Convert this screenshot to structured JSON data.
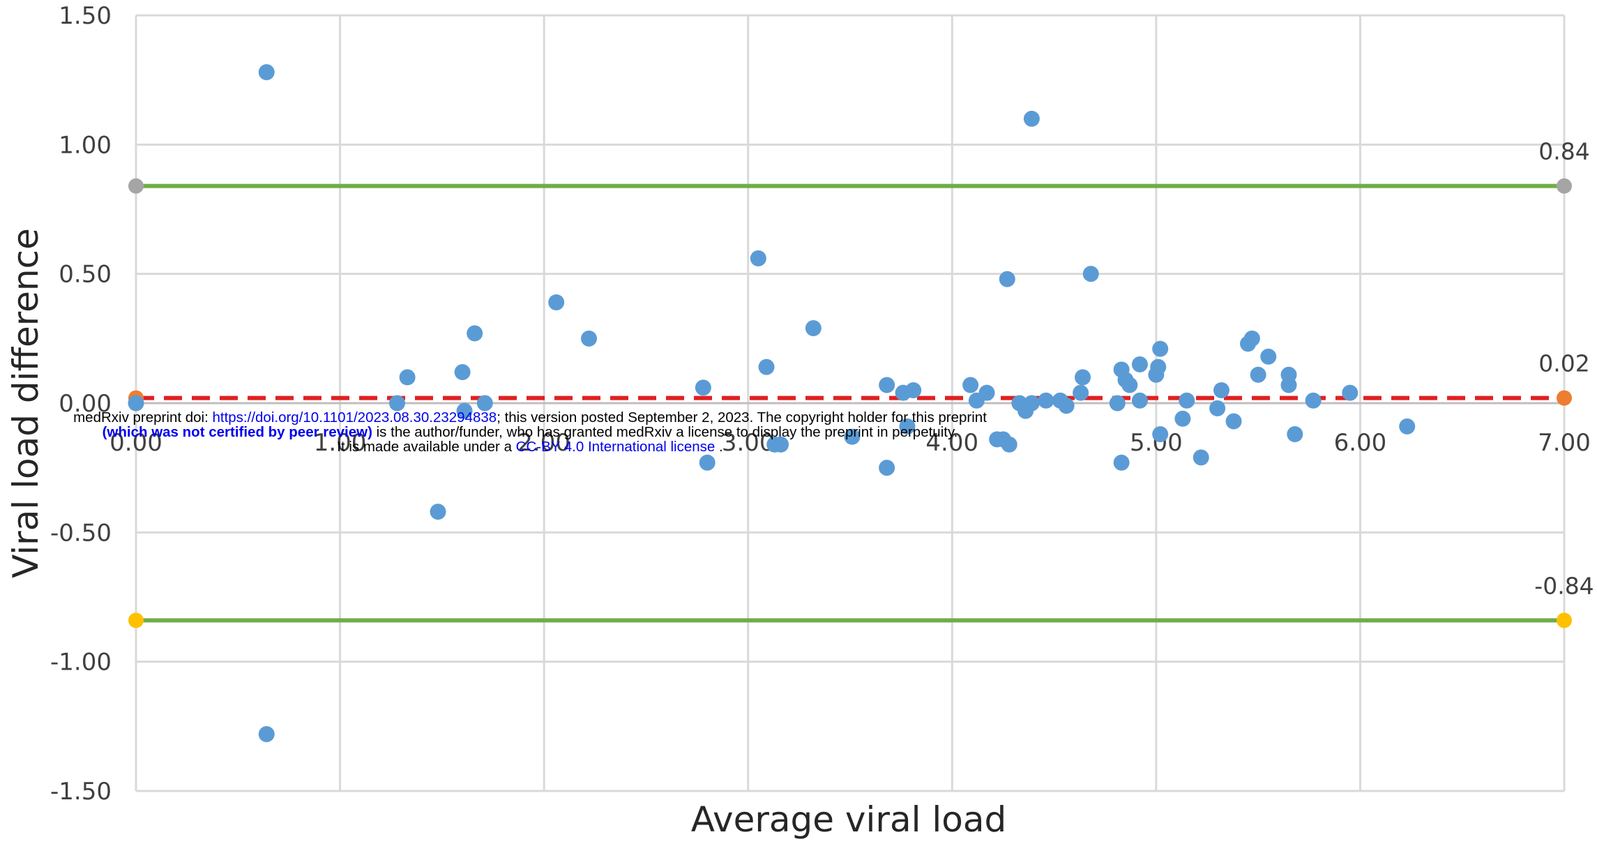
{
  "chart_data": {
    "type": "scatter",
    "xlabel": "Average viral load",
    "ylabel": "Viral load difference",
    "xlim": [
      0,
      7
    ],
    "ylim": [
      -1.5,
      1.5
    ],
    "x_ticks": [
      "0.00",
      "1.00",
      "2.00",
      "3.00",
      "4.00",
      "5.00",
      "6.00",
      "7.00"
    ],
    "y_ticks": [
      "1.50",
      "1.00",
      "0.50",
      "0.00",
      "-0.50",
      "-1.00",
      "-1.50"
    ],
    "grid": true,
    "point_color": "#5b9bd5",
    "points": [
      {
        "x": 0.0,
        "y": 0.0
      },
      {
        "x": 0.64,
        "y": 1.28
      },
      {
        "x": 0.64,
        "y": -1.28
      },
      {
        "x": 1.28,
        "y": 0.0
      },
      {
        "x": 1.33,
        "y": 0.1
      },
      {
        "x": 1.48,
        "y": -0.42
      },
      {
        "x": 1.6,
        "y": 0.12
      },
      {
        "x": 1.61,
        "y": -0.03
      },
      {
        "x": 1.66,
        "y": 0.27
      },
      {
        "x": 1.71,
        "y": 0.0
      },
      {
        "x": 2.06,
        "y": 0.39
      },
      {
        "x": 2.22,
        "y": 0.25
      },
      {
        "x": 2.78,
        "y": 0.06
      },
      {
        "x": 2.8,
        "y": -0.23
      },
      {
        "x": 3.05,
        "y": 0.56
      },
      {
        "x": 3.09,
        "y": 0.14
      },
      {
        "x": 3.13,
        "y": -0.16
      },
      {
        "x": 3.16,
        "y": -0.16
      },
      {
        "x": 3.32,
        "y": 0.29
      },
      {
        "x": 3.51,
        "y": -0.13
      },
      {
        "x": 3.68,
        "y": 0.07
      },
      {
        "x": 3.68,
        "y": -0.25
      },
      {
        "x": 3.76,
        "y": 0.04
      },
      {
        "x": 3.78,
        "y": -0.09
      },
      {
        "x": 3.81,
        "y": 0.05
      },
      {
        "x": 4.09,
        "y": 0.07
      },
      {
        "x": 4.12,
        "y": 0.01
      },
      {
        "x": 4.17,
        "y": 0.04
      },
      {
        "x": 4.22,
        "y": -0.14
      },
      {
        "x": 4.25,
        "y": -0.14
      },
      {
        "x": 4.27,
        "y": 0.48
      },
      {
        "x": 4.28,
        "y": -0.16
      },
      {
        "x": 4.33,
        "y": 0.0
      },
      {
        "x": 4.36,
        "y": -0.03
      },
      {
        "x": 4.39,
        "y": 1.1
      },
      {
        "x": 4.39,
        "y": 0.0
      },
      {
        "x": 4.46,
        "y": 0.01
      },
      {
        "x": 4.53,
        "y": 0.01
      },
      {
        "x": 4.56,
        "y": -0.01
      },
      {
        "x": 4.63,
        "y": 0.04
      },
      {
        "x": 4.64,
        "y": 0.1
      },
      {
        "x": 4.68,
        "y": 0.5
      },
      {
        "x": 4.81,
        "y": 0.0
      },
      {
        "x": 4.83,
        "y": 0.13
      },
      {
        "x": 4.83,
        "y": -0.23
      },
      {
        "x": 4.85,
        "y": 0.09
      },
      {
        "x": 4.87,
        "y": 0.07
      },
      {
        "x": 4.92,
        "y": 0.15
      },
      {
        "x": 4.92,
        "y": 0.01
      },
      {
        "x": 5.0,
        "y": 0.11
      },
      {
        "x": 5.01,
        "y": 0.14
      },
      {
        "x": 5.02,
        "y": 0.21
      },
      {
        "x": 5.02,
        "y": -0.12
      },
      {
        "x": 5.13,
        "y": -0.06
      },
      {
        "x": 5.15,
        "y": 0.01
      },
      {
        "x": 5.22,
        "y": -0.21
      },
      {
        "x": 5.3,
        "y": -0.02
      },
      {
        "x": 5.32,
        "y": 0.05
      },
      {
        "x": 5.38,
        "y": -0.07
      },
      {
        "x": 5.45,
        "y": 0.23
      },
      {
        "x": 5.47,
        "y": 0.25
      },
      {
        "x": 5.5,
        "y": 0.11
      },
      {
        "x": 5.55,
        "y": 0.18
      },
      {
        "x": 5.65,
        "y": 0.11
      },
      {
        "x": 5.65,
        "y": 0.07
      },
      {
        "x": 5.68,
        "y": -0.12
      },
      {
        "x": 5.77,
        "y": 0.01
      },
      {
        "x": 5.95,
        "y": 0.04
      },
      {
        "x": 6.23,
        "y": -0.09
      }
    ],
    "lines": [
      {
        "y": 0.84,
        "label": "0.84",
        "color": "#70ad47",
        "style": "solid",
        "marker_color": "#a5a5a5"
      },
      {
        "y": 0.02,
        "label": "0.02",
        "color": "#e02020",
        "style": "dashed",
        "marker_color": "#ed7d31"
      },
      {
        "y": -0.84,
        "label": "-0.84",
        "color": "#70ad47",
        "style": "solid",
        "marker_color": "#ffc000"
      }
    ]
  },
  "watermark": {
    "line1_prefix": "medRxiv preprint doi: ",
    "line1_link": "https://doi.org/10.1101/2023.08.30.23294838",
    "line1_suffix": "; this version posted September 2, 2023. The copyright holder for this preprint",
    "line2_bold": "(which was not certified by peer review)",
    "line2_suffix": " is the author/funder, who has granted medRxiv a license to display the preprint in perpetuity.",
    "line3_prefix": "It is made available under a ",
    "line3_link": "CC-BY 4.0 International license",
    "line3_suffix": " ."
  }
}
